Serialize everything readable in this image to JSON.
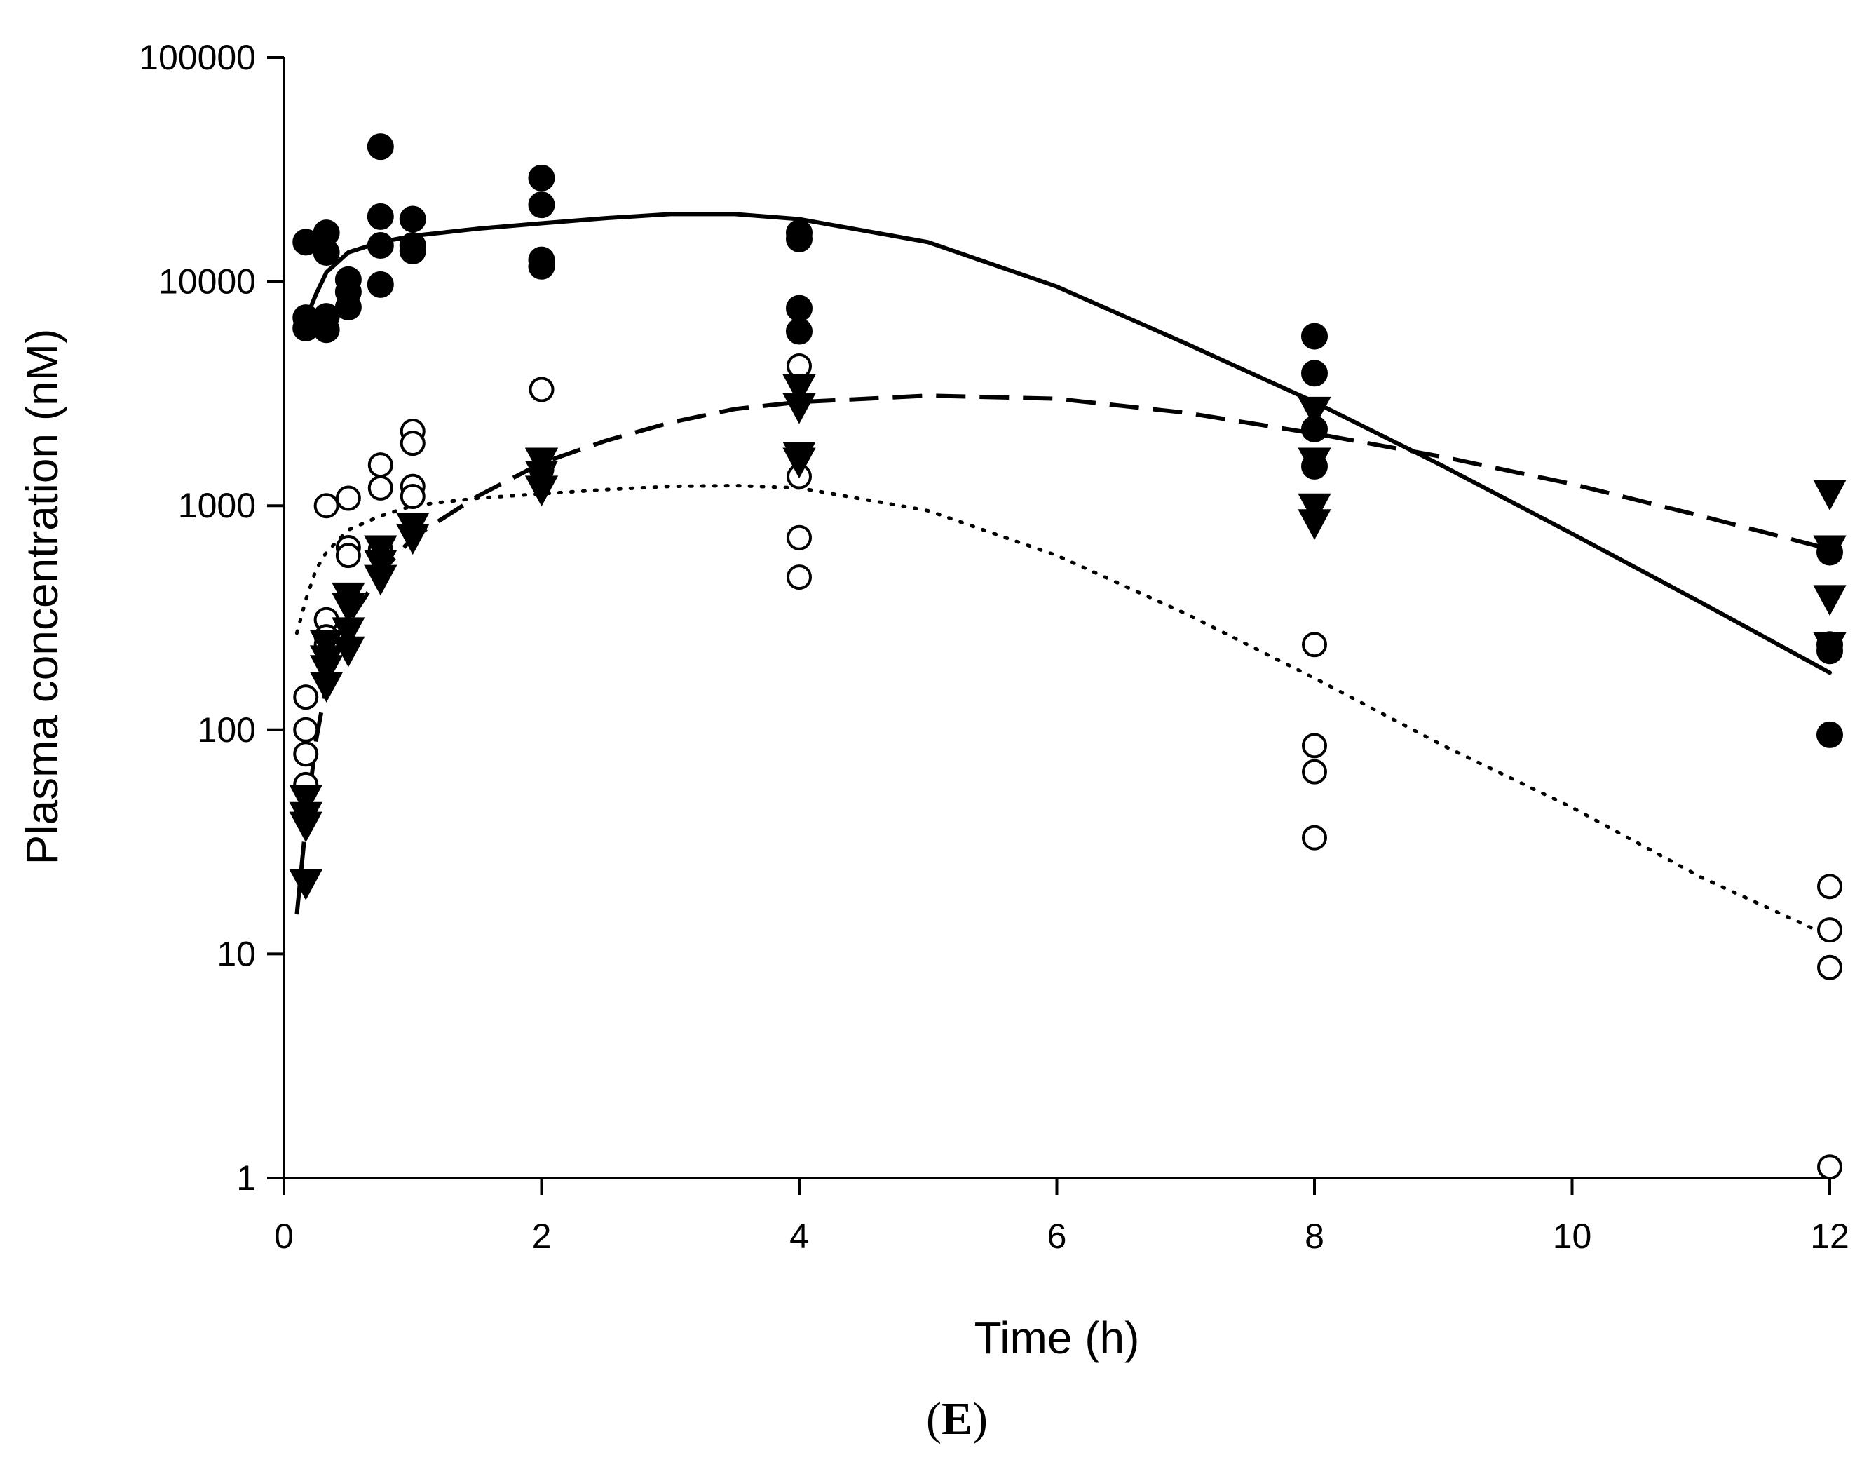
{
  "chart_data": {
    "type": "scatter",
    "title": "",
    "panel_label": "(E)",
    "panel_label_open": "(",
    "panel_label_letter": "E",
    "panel_label_close": ")",
    "xlabel": "Time (h)",
    "ylabel": "Plasma concentration (nM)",
    "xlim": [
      0,
      12
    ],
    "ylim": [
      1,
      100000
    ],
    "yscale": "log",
    "grid": false,
    "legend": "none",
    "x_ticks": [
      "0",
      "2",
      "4",
      "6",
      "8",
      "10",
      "12"
    ],
    "x_tick_values": [
      0,
      2,
      4,
      6,
      8,
      10,
      12
    ],
    "y_ticks": [
      "1",
      "10",
      "100",
      "1000",
      "10000",
      "100000"
    ],
    "y_tick_values": [
      1,
      10,
      100,
      1000,
      10000,
      100000
    ],
    "series": [
      {
        "name": "filled circles",
        "marker": "filled-circle",
        "color": "#000000",
        "points": [
          [
            0.17,
            15000
          ],
          [
            0.17,
            6900
          ],
          [
            0.17,
            6200
          ],
          [
            0.33,
            16500
          ],
          [
            0.33,
            13500
          ],
          [
            0.33,
            7000
          ],
          [
            0.33,
            6100
          ],
          [
            0.5,
            10200
          ],
          [
            0.5,
            9000
          ],
          [
            0.5,
            7700
          ],
          [
            0.75,
            40000
          ],
          [
            0.75,
            19500
          ],
          [
            0.75,
            14500
          ],
          [
            0.75,
            9700
          ],
          [
            1,
            19000
          ],
          [
            1,
            14500
          ],
          [
            1,
            13700
          ],
          [
            2,
            29000
          ],
          [
            2,
            22000
          ],
          [
            2,
            12500
          ],
          [
            2,
            11700
          ],
          [
            4,
            16500
          ],
          [
            4,
            15500
          ],
          [
            4,
            7600
          ],
          [
            4,
            6000
          ],
          [
            8,
            5700
          ],
          [
            8,
            3900
          ],
          [
            8,
            2200
          ],
          [
            8,
            1500
          ],
          [
            12,
            620
          ],
          [
            12,
            240
          ],
          [
            12,
            225
          ],
          [
            12,
            95
          ]
        ]
      },
      {
        "name": "open circles",
        "marker": "open-circle",
        "color": "#000000",
        "points": [
          [
            0.17,
            140
          ],
          [
            0.17,
            100
          ],
          [
            0.17,
            78
          ],
          [
            0.17,
            57
          ],
          [
            0.33,
            1000
          ],
          [
            0.33,
            310
          ],
          [
            0.33,
            260
          ],
          [
            0.33,
            240
          ],
          [
            0.5,
            1080
          ],
          [
            0.5,
            650
          ],
          [
            0.5,
            600
          ],
          [
            0.75,
            1520
          ],
          [
            0.75,
            1200
          ],
          [
            0.75,
            640
          ],
          [
            1,
            2150
          ],
          [
            1,
            1900
          ],
          [
            1,
            1220
          ],
          [
            1,
            1100
          ],
          [
            2,
            3300
          ],
          [
            2,
            1450
          ],
          [
            4,
            4200
          ],
          [
            4,
            1350
          ],
          [
            4,
            720
          ],
          [
            4,
            480
          ],
          [
            8,
            240
          ],
          [
            8,
            85
          ],
          [
            8,
            65
          ],
          [
            8,
            33
          ],
          [
            12,
            20
          ],
          [
            12,
            12.8
          ],
          [
            12,
            8.7
          ],
          [
            12,
            1.12
          ]
        ]
      },
      {
        "name": "filled triangles",
        "marker": "filled-triangle-down",
        "color": "#000000",
        "points": [
          [
            0.17,
            50
          ],
          [
            0.17,
            42
          ],
          [
            0.17,
            38
          ],
          [
            0.17,
            21
          ],
          [
            0.33,
            245
          ],
          [
            0.33,
            210
          ],
          [
            0.33,
            190
          ],
          [
            0.33,
            160
          ],
          [
            0.5,
            400
          ],
          [
            0.5,
            360
          ],
          [
            0.5,
            280
          ],
          [
            0.5,
            230
          ],
          [
            0.75,
            650
          ],
          [
            0.75,
            560
          ],
          [
            0.75,
            480
          ],
          [
            1,
            820
          ],
          [
            1,
            730
          ],
          [
            2,
            1600
          ],
          [
            2,
            1400
          ],
          [
            2,
            1200
          ],
          [
            4,
            3400
          ],
          [
            4,
            2800
          ],
          [
            4,
            1700
          ],
          [
            4,
            1600
          ],
          [
            8,
            2700
          ],
          [
            8,
            1600
          ],
          [
            8,
            1000
          ],
          [
            8,
            850
          ],
          [
            12,
            1150
          ],
          [
            12,
            650
          ],
          [
            12,
            390
          ],
          [
            12,
            240
          ]
        ]
      }
    ],
    "fit_lines": [
      {
        "name": "solid fit",
        "style": "solid",
        "x": [
          0.17,
          0.25,
          0.33,
          0.5,
          0.75,
          1,
          1.5,
          2,
          2.5,
          3,
          3.5,
          4,
          5,
          6,
          7,
          8,
          9,
          10,
          11,
          12
        ],
        "y": [
          6800,
          8800,
          11000,
          13500,
          15000,
          16000,
          17200,
          18200,
          19200,
          20000,
          20000,
          19000,
          15000,
          9500,
          5300,
          2900,
          1500,
          750,
          370,
          180
        ]
      },
      {
        "name": "dashed fit",
        "style": "dashed",
        "x": [
          0.1,
          0.17,
          0.25,
          0.33,
          0.5,
          0.75,
          1,
          1.5,
          2,
          2.5,
          3,
          3.5,
          4,
          5,
          6,
          7,
          8,
          9,
          10,
          11,
          12
        ],
        "y": [
          15,
          38,
          90,
          160,
          300,
          500,
          720,
          1100,
          1550,
          1950,
          2350,
          2700,
          2900,
          3100,
          3000,
          2600,
          2100,
          1650,
          1250,
          900,
          640
        ]
      },
      {
        "name": "dotted fit",
        "style": "dotted",
        "x": [
          0.1,
          0.17,
          0.25,
          0.33,
          0.5,
          0.75,
          1,
          1.5,
          2,
          2.5,
          3,
          3.5,
          4,
          5,
          6,
          7,
          8,
          9,
          10,
          11,
          12
        ],
        "y": [
          270,
          380,
          520,
          620,
          780,
          900,
          1000,
          1080,
          1130,
          1180,
          1220,
          1230,
          1200,
          950,
          600,
          330,
          170,
          85,
          45,
          22,
          12
        ]
      }
    ]
  }
}
